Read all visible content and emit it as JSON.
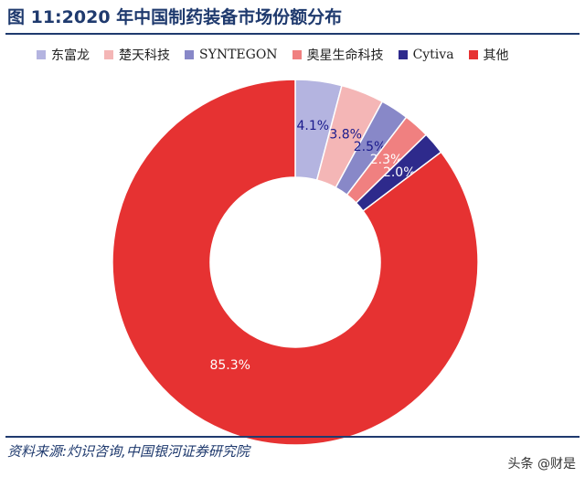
{
  "chart_data": {
    "type": "pie",
    "title": "图 11:2020 年中国制药装备市场份额分布",
    "donut": true,
    "labels": [
      "东富龙",
      "楚天科技",
      "SYNTEGON",
      "奥星生命科技",
      "Cytiva",
      "其他"
    ],
    "values": [
      4.1,
      3.8,
      2.5,
      2.3,
      2.0,
      85.3
    ],
    "value_labels": [
      "4.1%",
      "3.8%",
      "2.5%",
      "2.3%",
      "2.0%",
      "85.3%"
    ],
    "colors": [
      "#b4b4e0",
      "#f4b6b6",
      "#8888c8",
      "#f08080",
      "#2e2a8c",
      "#e63232"
    ],
    "label_colors": [
      "#1a1a8c",
      "#1a1a8c",
      "#1a1a8c",
      "#ffffff",
      "#ffffff",
      "#ffffff"
    ],
    "legend_position": "top"
  },
  "source": "资料来源:灼识咨询,中国银河证券研究院",
  "watermark": "头条 @财是"
}
